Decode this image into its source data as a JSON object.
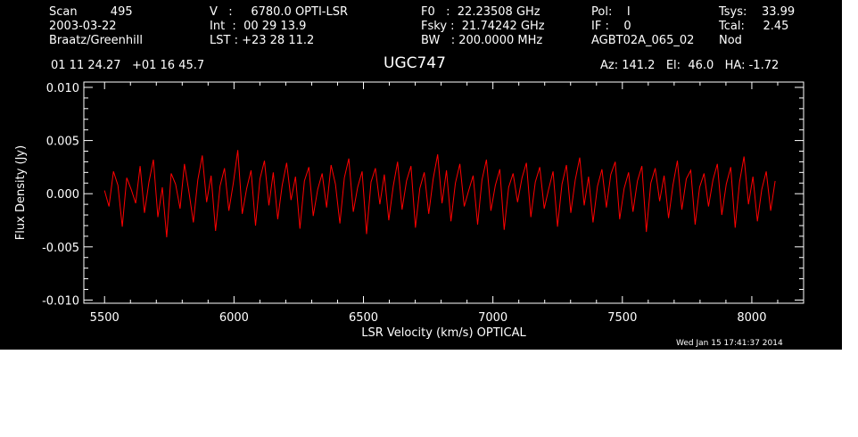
{
  "header": {
    "col1": [
      "Scan         495",
      "2003-03-22",
      "Braatz/Greenhill"
    ],
    "col2": [
      "V   :     6780.0 OPTI-LSR",
      "Int  :  00 29 13.9",
      "LST : +23 28 11.2"
    ],
    "col3": [
      "F0   :  22.23508 GHz",
      "Fsky :  21.74242 GHz",
      "BW   : 200.0000 MHz"
    ],
    "col4": [
      "Pol:    I",
      "IF :    0",
      "AGBT02A_065_02"
    ],
    "col5": [
      "Tsys:    33.99",
      "Tcal:     2.45",
      "Nod"
    ],
    "coords": "01 11 24.27   +01 16 45.7",
    "source": "UGC747",
    "azel": "Az: 141.2   El:  46.0   HA: -1.72",
    "timestamp": "Wed Jan 15 17:41:37 2014"
  },
  "colors": {
    "background": "#000000",
    "axes": "#ffffff",
    "trace": "#ff0000"
  },
  "chart_data": {
    "type": "line",
    "title": "UGC747",
    "xlabel": "LSR Velocity (km/s) OPTICAL",
    "ylabel": "Flux Density (Jy)",
    "xlim": [
      5420,
      8200
    ],
    "ylim": [
      -0.0103,
      0.0105
    ],
    "xticks": [
      5500,
      6000,
      6500,
      7000,
      7500,
      8000
    ],
    "xtick_labels": [
      "5500",
      "6000",
      "6500",
      "7000",
      "7500",
      "8000"
    ],
    "yticks": [
      -0.01,
      -0.005,
      0.0,
      0.005,
      0.01
    ],
    "ytick_labels": [
      "-0.010",
      "-0.005",
      "0.000",
      "0.005",
      "0.010"
    ],
    "grid": false,
    "legend": "none",
    "series": [
      {
        "x_start": 5500,
        "x_end": 8090,
        "values": [
          0.0003,
          -0.0012,
          0.0021,
          0.0008,
          -0.0031,
          0.0015,
          0.0004,
          -0.0009,
          0.0026,
          -0.0018,
          0.0011,
          0.0032,
          -0.0022,
          0.0006,
          -0.0041,
          0.0019,
          0.0009,
          -0.0014,
          0.0028,
          0.0002,
          -0.0027,
          0.0013,
          0.0036,
          -0.0008,
          0.0017,
          -0.0035,
          0.0007,
          0.0024,
          -0.0016,
          0.001,
          0.0041,
          -0.0019,
          0.0005,
          0.0022,
          -0.003,
          0.0014,
          0.0031,
          -0.0011,
          0.002,
          -0.0024,
          0.0008,
          0.0029,
          -0.0006,
          0.0016,
          -0.0033,
          0.0012,
          0.0025,
          -0.0021,
          0.0004,
          0.0019,
          -0.0013,
          0.0027,
          0.0009,
          -0.0028,
          0.0015,
          0.0033,
          -0.0017,
          0.0006,
          0.0021,
          -0.0038,
          0.0011,
          0.0024,
          -0.001,
          0.0018,
          -0.0025,
          0.0007,
          0.003,
          -0.0015,
          0.0012,
          0.0026,
          -0.0032,
          0.0005,
          0.002,
          -0.0019,
          0.0014,
          0.0037,
          -0.0009,
          0.0022,
          -0.0026,
          0.001,
          0.0028,
          -0.0012,
          0.0003,
          0.0017,
          -0.0029,
          0.0013,
          0.0032,
          -0.0016,
          0.0008,
          0.0023,
          -0.0034,
          0.0006,
          0.0019,
          -0.0008,
          0.0015,
          0.0029,
          -0.0022,
          0.0011,
          0.0025,
          -0.0014,
          0.0004,
          0.0021,
          -0.0031,
          0.0009,
          0.0027,
          -0.0018,
          0.0013,
          0.0034,
          -0.0011,
          0.0016,
          -0.0027,
          0.0007,
          0.0023,
          -0.0013,
          0.0018,
          0.003,
          -0.0024,
          0.0005,
          0.002,
          -0.0017,
          0.0012,
          0.0026,
          -0.0036,
          0.001,
          0.0024,
          -0.0007,
          0.0017,
          -0.0023,
          0.0008,
          0.0031,
          -0.0015,
          0.0014,
          0.0022,
          -0.0029,
          0.0006,
          0.0019,
          -0.0012,
          0.0013,
          0.0028,
          -0.002,
          0.0009,
          0.0025,
          -0.0032,
          0.0011,
          0.0035,
          -0.001,
          0.0016,
          -0.0026,
          0.0004,
          0.0021,
          -0.0016,
          0.0012
        ]
      }
    ]
  }
}
